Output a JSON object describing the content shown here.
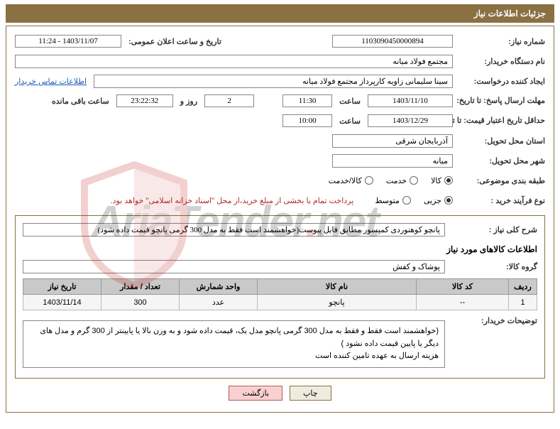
{
  "header_title": "جزئیات اطلاعات نیاز",
  "labels": {
    "need_no": "شماره نیاز:",
    "public_time": "تاریخ و ساعت اعلان عمومی:",
    "buyer_org": "نام دستگاه خریدار:",
    "creator": "ایجاد کننده درخواست:",
    "response_deadline": "مهلت ارسال پاسخ: تا تاریخ:",
    "hour_word": "ساعت",
    "days_and": "روز و",
    "remaining": "ساعت باقی مانده",
    "price_validity": "حداقل تاریخ اعتبار قیمت: تا تاریخ:",
    "delivery_province": "استان محل تحویل:",
    "delivery_city": "شهر محل تحویل:",
    "category": "طبقه بندی موضوعی:",
    "purchase_type": "نوع فرآیند خرید :",
    "need_desc": "شرح کلی نیاز :",
    "goods_info": "اطلاعات کالاهای مورد نیاز",
    "goods_group": "گروه کالا:",
    "buyer_notes": "توضیحات خریدار:"
  },
  "values": {
    "need_no": "1103090450000894",
    "public_time": "1403/11/07 - 11:24",
    "buyer_org": "مجتمع فولاد میانه",
    "creator": "سینا سلیمانی زاویه کارپرداز مجتمع فولاد میانه",
    "contact_link": "اطلاعات تماس خریدار",
    "resp_date": "1403/11/10",
    "resp_hour": "11:30",
    "remaining_days": "2",
    "remaining_time": "23:22:32",
    "price_date": "1403/12/29",
    "price_hour": "10:00",
    "province": "آذربایجان شرقی",
    "city": "میانه",
    "payment_note": "پرداخت تمام یا بخشی از مبلغ خرید،از محل \"اسناد خزانه اسلامی\" خواهد بود.",
    "need_desc": "پانچو کوهنوردی کمپسور مطابق فایل پیوست(خواهشمند است فقط به مدل 300 گرمی پانچو قیمت داده شود)",
    "goods_group": "پوشاک و کفش",
    "buyer_notes_1": "(خواهشمند است فقط و فقط به مدل 300 گرمی پانچو مدل یک، قیمت داده شود و به وزن بالا یا پایینتر از 300 گرم  و مدل های دیگر یا پایین قیمت داده نشود )",
    "buyer_notes_2": "هزینه ارسال به عهده تامین کننده است"
  },
  "radios": {
    "category": [
      {
        "label": "کالا",
        "selected": true
      },
      {
        "label": "خدمت",
        "selected": false
      },
      {
        "label": "کالا/خدمت",
        "selected": false
      }
    ],
    "purchase": [
      {
        "label": "جزیی",
        "selected": true
      },
      {
        "label": "متوسط",
        "selected": false
      }
    ]
  },
  "table": {
    "headers": [
      "ردیف",
      "کد کالا",
      "نام کالا",
      "واحد شمارش",
      "تعداد / مقدار",
      "تاریخ نیاز"
    ],
    "row": [
      "1",
      "--",
      "پانچو",
      "عدد",
      "300",
      "1403/11/14"
    ]
  },
  "buttons": {
    "print": "چاپ",
    "back": "بازگشت"
  },
  "colors": {
    "brand": "#8a7043",
    "note": "#b02a2a",
    "link": "#1a5bb8"
  }
}
